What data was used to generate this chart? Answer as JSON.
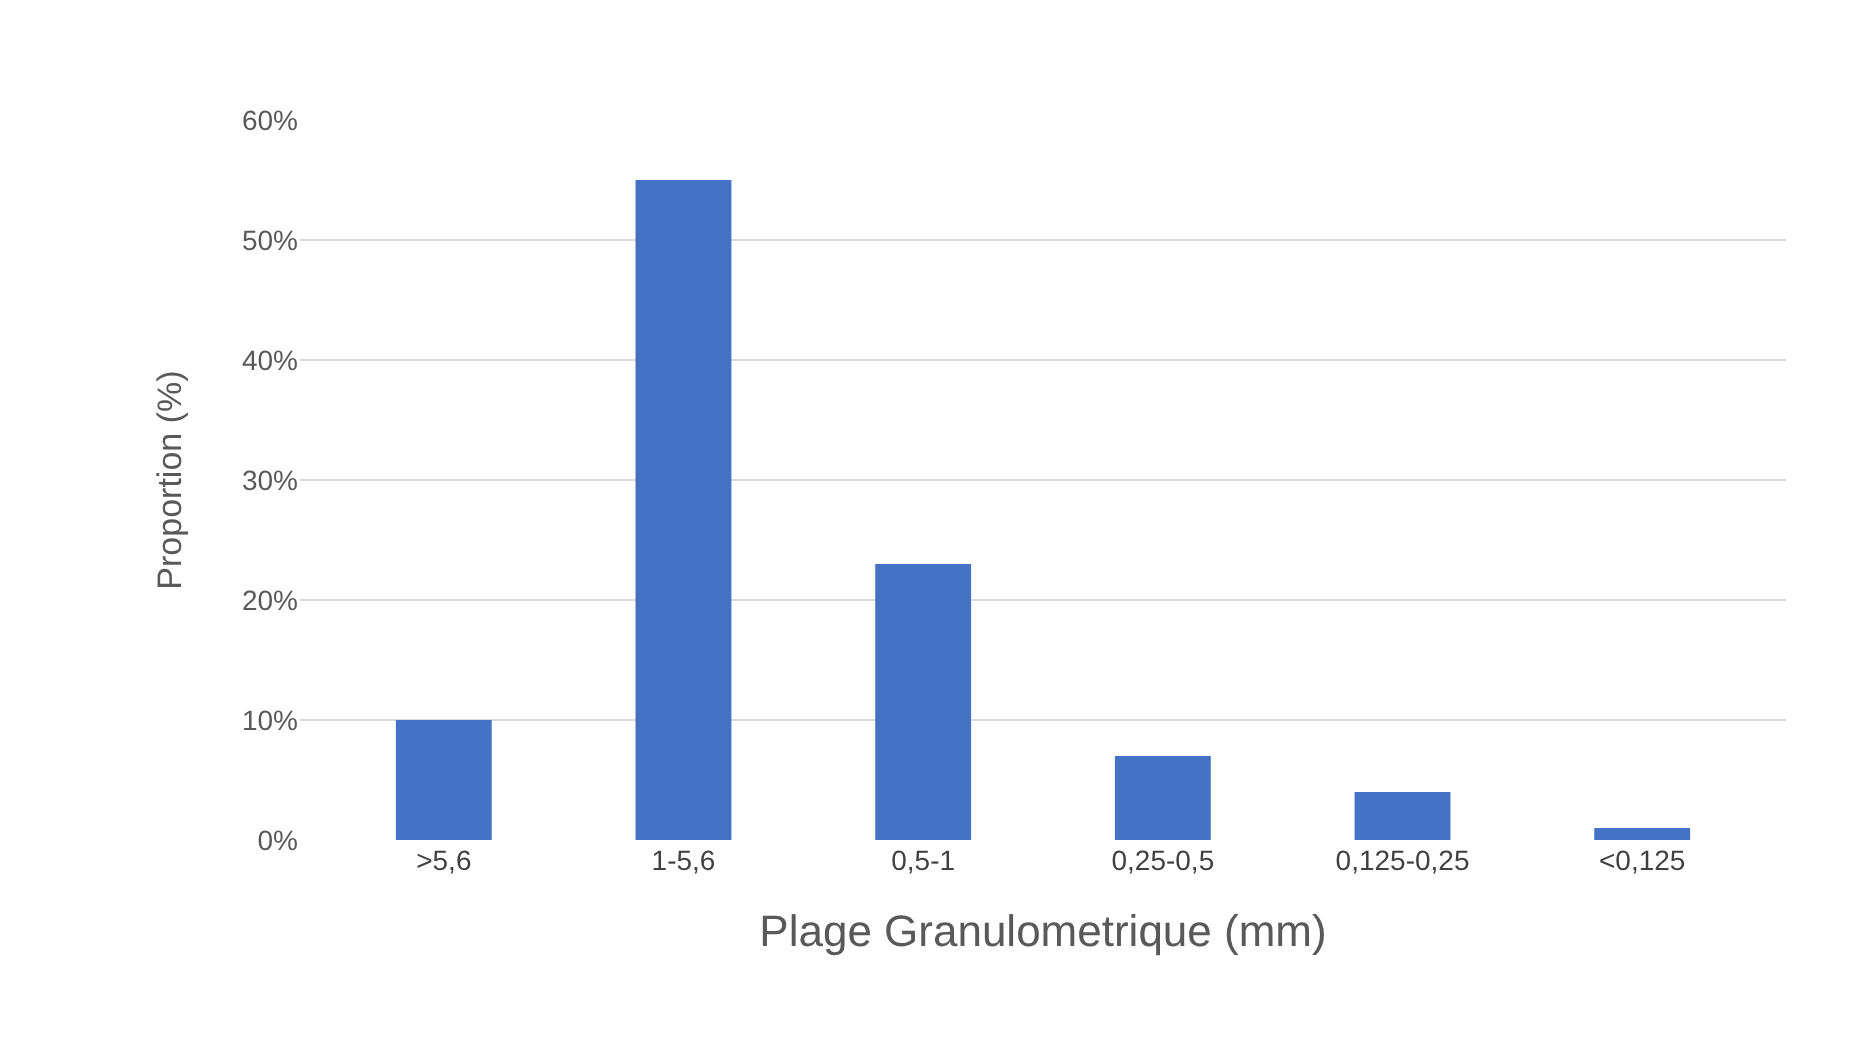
{
  "chart_data": {
    "type": "bar",
    "xlabel": "Plage Granulometrique (mm)",
    "ylabel": "Proportion (%)",
    "categories": [
      ">5,6",
      "1-5,6",
      "0,5-1",
      "0,25-0,5",
      "0,125-0,25",
      "<0,125"
    ],
    "values": [
      10,
      55,
      23,
      7,
      4,
      1
    ],
    "color": "#4472c4",
    "ylim": [
      0,
      60
    ],
    "yticks": [
      {
        "value": 0,
        "label": "0%"
      },
      {
        "value": 10,
        "label": "10%"
      },
      {
        "value": 20,
        "label": "20%"
      },
      {
        "value": 30,
        "label": "30%"
      },
      {
        "value": 40,
        "label": "40%"
      },
      {
        "value": 50,
        "label": "50%"
      },
      {
        "value": 60,
        "label": "60%"
      }
    ],
    "grid": "y"
  }
}
